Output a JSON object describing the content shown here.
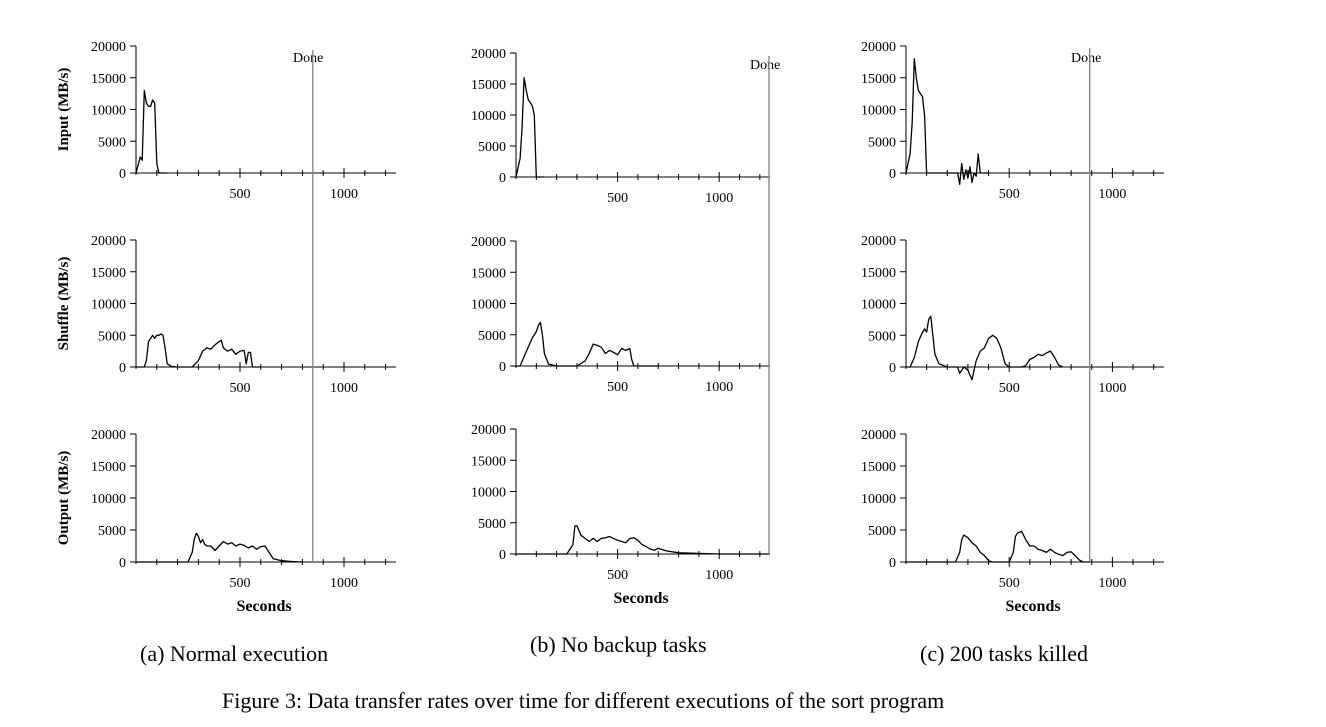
{
  "figure_caption": "Figure 3: Data transfer rates over time for different executions of the sort program",
  "columns": [
    {
      "caption": "(a) Normal execution"
    },
    {
      "caption": "(b) No backup tasks"
    },
    {
      "caption": "(c) 200 tasks killed"
    }
  ],
  "chart_data": [
    {
      "type": "line",
      "panel": "a-input",
      "title": "(a) Normal execution",
      "xlabel": "",
      "ylabel": "Input (MB/s)",
      "xlim": [
        0,
        1250
      ],
      "ylim": [
        0,
        20000
      ],
      "xticks": [
        500,
        1000
      ],
      "yticks": [
        0,
        5000,
        10000,
        15000,
        20000
      ],
      "done_label": "Done",
      "done_x": 850,
      "series": [
        {
          "name": "Input",
          "x": [
            0,
            20,
            30,
            40,
            50,
            60,
            70,
            80,
            90,
            100,
            110,
            120,
            130,
            140,
            150
          ],
          "y": [
            0,
            2500,
            2000,
            13000,
            11000,
            10500,
            10500,
            11500,
            11000,
            1500,
            0,
            0,
            0,
            0,
            0
          ]
        }
      ]
    },
    {
      "type": "line",
      "panel": "a-shuffle",
      "title": "(a) Normal execution",
      "xlabel": "",
      "ylabel": "Shuffle (MB/s)",
      "xlim": [
        0,
        1250
      ],
      "ylim": [
        0,
        20000
      ],
      "xticks": [
        500,
        1000
      ],
      "yticks": [
        0,
        5000,
        10000,
        15000,
        20000
      ],
      "done_label": "",
      "done_x": 850,
      "series": [
        {
          "name": "Shuffle",
          "x": [
            0,
            40,
            50,
            60,
            80,
            90,
            100,
            110,
            120,
            130,
            140,
            150,
            170,
            200,
            230,
            270,
            300,
            320,
            340,
            360,
            380,
            400,
            410,
            420,
            440,
            460,
            480,
            500,
            520,
            530,
            540,
            550,
            560,
            580,
            600
          ],
          "y": [
            0,
            0,
            1000,
            4000,
            5000,
            4500,
            5000,
            5000,
            5200,
            5000,
            3000,
            500,
            100,
            0,
            0,
            0,
            1000,
            2500,
            3000,
            2800,
            3500,
            4000,
            4200,
            3000,
            2500,
            2800,
            2000,
            2500,
            2600,
            500,
            2300,
            2300,
            0,
            0,
            0
          ]
        }
      ]
    },
    {
      "type": "line",
      "panel": "a-output",
      "title": "(a) Normal execution",
      "xlabel": "Seconds",
      "ylabel": "Output (MB/s)",
      "xlim": [
        0,
        1250
      ],
      "ylim": [
        0,
        20000
      ],
      "xticks": [
        500,
        1000
      ],
      "yticks": [
        0,
        5000,
        10000,
        15000,
        20000
      ],
      "done_label": "",
      "done_x": 850,
      "series": [
        {
          "name": "Output",
          "x": [
            0,
            200,
            250,
            270,
            280,
            290,
            300,
            310,
            320,
            330,
            340,
            360,
            380,
            400,
            420,
            440,
            460,
            480,
            500,
            520,
            540,
            560,
            580,
            600,
            620,
            640,
            660,
            700,
            740,
            800
          ],
          "y": [
            0,
            0,
            0,
            1500,
            3500,
            4500,
            4000,
            3000,
            3500,
            2800,
            2500,
            2500,
            1800,
            2500,
            3200,
            2800,
            3000,
            2500,
            2800,
            2600,
            2200,
            2500,
            2000,
            2400,
            2500,
            1500,
            500,
            200,
            100,
            0
          ]
        }
      ]
    },
    {
      "type": "line",
      "panel": "b-input",
      "title": "(b) No backup tasks",
      "xlabel": "",
      "ylabel": "",
      "xlim": [
        0,
        1250
      ],
      "ylim": [
        0,
        20000
      ],
      "xticks": [
        500,
        1000
      ],
      "yticks": [
        0,
        5000,
        10000,
        15000,
        20000
      ],
      "done_label": "Done",
      "done_x": 1245,
      "series": [
        {
          "name": "Input",
          "x": [
            0,
            20,
            30,
            40,
            50,
            60,
            70,
            80,
            90,
            100,
            110,
            120,
            130,
            140
          ],
          "y": [
            0,
            3000,
            8000,
            16000,
            14000,
            12500,
            12000,
            11500,
            10000,
            0,
            0,
            0,
            0,
            0
          ]
        }
      ]
    },
    {
      "type": "line",
      "panel": "b-shuffle",
      "title": "(b) No backup tasks",
      "xlabel": "",
      "ylabel": "",
      "xlim": [
        0,
        1250
      ],
      "ylim": [
        0,
        20000
      ],
      "xticks": [
        500,
        1000
      ],
      "yticks": [
        0,
        5000,
        10000,
        15000,
        20000
      ],
      "done_label": "",
      "done_x": 1245,
      "series": [
        {
          "name": "Shuffle",
          "x": [
            0,
            20,
            40,
            60,
            80,
            100,
            110,
            120,
            130,
            140,
            160,
            200,
            250,
            300,
            340,
            360,
            380,
            400,
            420,
            440,
            460,
            480,
            500,
            520,
            540,
            560,
            570,
            580,
            620,
            700
          ],
          "y": [
            0,
            0,
            1500,
            3000,
            4500,
            5500,
            6500,
            7000,
            5000,
            2000,
            300,
            0,
            0,
            0,
            800,
            2000,
            3500,
            3300,
            3000,
            2000,
            2500,
            2200,
            1800,
            2800,
            2500,
            2800,
            1000,
            0,
            0,
            0
          ]
        }
      ]
    },
    {
      "type": "line",
      "panel": "b-output",
      "title": "(b) No backup tasks",
      "xlabel": "Seconds",
      "ylabel": "",
      "xlim": [
        0,
        1250
      ],
      "ylim": [
        0,
        20000
      ],
      "xticks": [
        500,
        1000
      ],
      "yticks": [
        0,
        5000,
        10000,
        15000,
        20000
      ],
      "done_label": "",
      "done_x": 1245,
      "series": [
        {
          "name": "Output",
          "x": [
            0,
            200,
            250,
            280,
            290,
            300,
            320,
            340,
            360,
            380,
            400,
            420,
            440,
            460,
            480,
            500,
            520,
            540,
            560,
            580,
            600,
            620,
            640,
            660,
            680,
            700,
            740,
            800,
            900,
            1000,
            1100,
            1200,
            1250
          ],
          "y": [
            0,
            0,
            0,
            1500,
            4500,
            4500,
            3000,
            2500,
            2000,
            2500,
            2000,
            2500,
            2600,
            2800,
            2500,
            2200,
            2000,
            1800,
            2500,
            2600,
            2200,
            1500,
            1200,
            800,
            600,
            900,
            500,
            200,
            100,
            0,
            0,
            0,
            0
          ]
        }
      ]
    },
    {
      "type": "line",
      "panel": "c-input",
      "title": "(c) 200 tasks killed",
      "xlabel": "",
      "ylabel": "",
      "xlim": [
        0,
        1250
      ],
      "ylim": [
        0,
        20000
      ],
      "xticks": [
        500,
        1000
      ],
      "yticks": [
        0,
        5000,
        10000,
        15000,
        20000
      ],
      "done_label": "Done",
      "done_x": 890,
      "series": [
        {
          "name": "Input",
          "x": [
            0,
            20,
            30,
            40,
            50,
            60,
            70,
            80,
            90,
            100,
            110,
            120,
            130,
            250,
            260,
            270,
            280,
            290,
            300,
            310,
            320,
            330,
            340,
            350,
            360,
            370,
            380,
            400
          ],
          "y": [
            0,
            3000,
            8000,
            18000,
            15000,
            13000,
            12500,
            12000,
            9000,
            0,
            0,
            0,
            0,
            0,
            -1800,
            1500,
            -1000,
            500,
            -800,
            1000,
            -1500,
            0,
            -500,
            3000,
            0,
            0,
            0,
            0
          ]
        }
      ]
    },
    {
      "type": "line",
      "panel": "c-shuffle",
      "title": "(c) 200 tasks killed",
      "xlabel": "",
      "ylabel": "",
      "xlim": [
        0,
        1250
      ],
      "ylim": [
        0,
        20000
      ],
      "xticks": [
        500,
        1000
      ],
      "yticks": [
        0,
        5000,
        10000,
        15000,
        20000
      ],
      "done_label": "",
      "done_x": 890,
      "series": [
        {
          "name": "Shuffle",
          "x": [
            0,
            20,
            40,
            60,
            80,
            90,
            100,
            110,
            120,
            140,
            160,
            200,
            250,
            260,
            280,
            300,
            320,
            340,
            360,
            380,
            400,
            420,
            440,
            460,
            480,
            500,
            520,
            540,
            560,
            580,
            600,
            620,
            640,
            660,
            680,
            700,
            720,
            740,
            760
          ],
          "y": [
            0,
            0,
            1500,
            4000,
            5500,
            6000,
            5500,
            7500,
            8000,
            2000,
            500,
            0,
            0,
            -1000,
            0,
            -500,
            -2000,
            1000,
            2500,
            3000,
            4500,
            5000,
            4500,
            3000,
            500,
            0,
            0,
            0,
            0,
            200,
            1200,
            1500,
            2000,
            1800,
            2200,
            2500,
            1500,
            300,
            0
          ]
        }
      ]
    },
    {
      "type": "line",
      "panel": "c-output",
      "title": "(c) 200 tasks killed",
      "xlabel": "Seconds",
      "ylabel": "",
      "xlim": [
        0,
        1250
      ],
      "ylim": [
        0,
        20000
      ],
      "xticks": [
        500,
        1000
      ],
      "yticks": [
        0,
        5000,
        10000,
        15000,
        20000
      ],
      "done_label": "",
      "done_x": 890,
      "series": [
        {
          "name": "Output",
          "x": [
            0,
            200,
            240,
            260,
            270,
            280,
            300,
            320,
            340,
            360,
            380,
            400,
            420,
            460,
            500,
            520,
            530,
            540,
            560,
            580,
            600,
            620,
            640,
            660,
            680,
            700,
            720,
            740,
            760,
            780,
            800,
            820,
            840,
            860,
            890
          ],
          "y": [
            0,
            0,
            0,
            1500,
            3500,
            4200,
            3800,
            3000,
            2500,
            1500,
            1000,
            200,
            0,
            0,
            0,
            1500,
            4000,
            4500,
            4800,
            3500,
            2500,
            2500,
            2000,
            1800,
            1500,
            2000,
            1500,
            1200,
            1000,
            1500,
            1600,
            1000,
            300,
            0,
            0
          ]
        }
      ]
    }
  ]
}
